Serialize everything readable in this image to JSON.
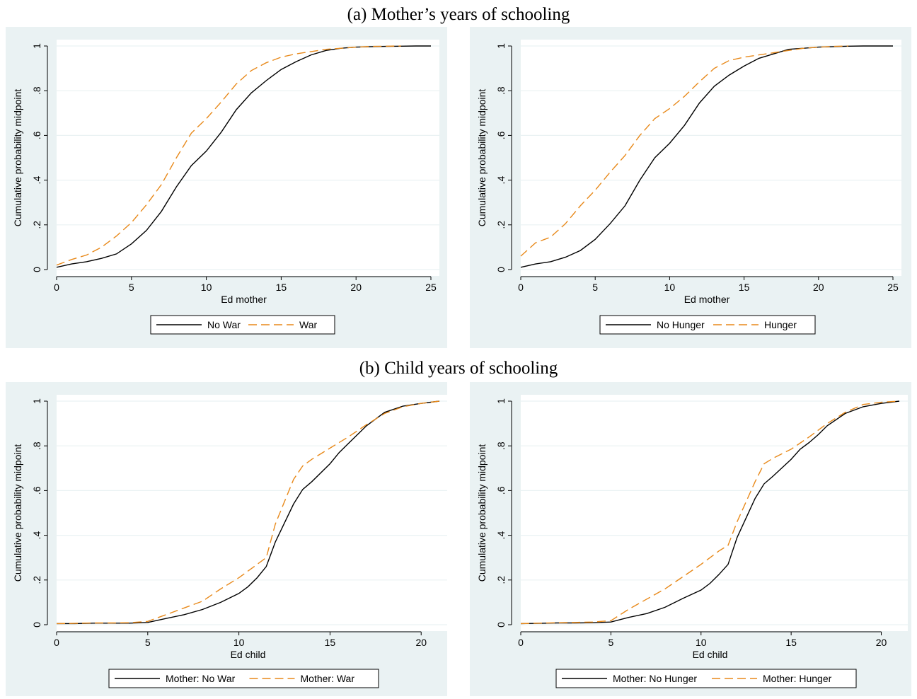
{
  "sections": [
    {
      "title": "(a) Mother’s years of schooling"
    },
    {
      "title": "(b) Child years of schooling"
    }
  ],
  "colors": {
    "series1": "#000000",
    "series2": "#e8891a",
    "panel_bg": "#eaf2f3",
    "plot_bg": "#ffffff"
  },
  "chart_data": [
    {
      "type": "line",
      "xlabel": "Ed mother",
      "ylabel": "Cumulative probability midpoint",
      "xlim": [
        0,
        25
      ],
      "ylim": [
        0,
        1
      ],
      "xticks": [
        0,
        5,
        10,
        15,
        20,
        25
      ],
      "yticks": [
        0,
        0.2,
        0.4,
        0.6,
        0.8,
        1
      ],
      "ytick_labels": [
        "0",
        ".2",
        ".4",
        ".6",
        ".8",
        "1"
      ],
      "grid": true,
      "legend_position": "bottom",
      "series": [
        {
          "name": "No War",
          "style": "solid",
          "x": [
            0,
            1,
            2,
            3,
            4,
            5,
            6,
            7,
            8,
            9,
            10,
            11,
            12,
            13,
            14,
            15,
            16,
            17,
            18,
            19,
            20,
            21,
            22,
            23,
            24,
            25
          ],
          "y": [
            0.01,
            0.025,
            0.035,
            0.05,
            0.07,
            0.115,
            0.175,
            0.26,
            0.37,
            0.465,
            0.53,
            0.615,
            0.715,
            0.79,
            0.845,
            0.895,
            0.93,
            0.96,
            0.98,
            0.99,
            0.995,
            0.997,
            0.998,
            0.999,
            1.0,
            1.0
          ]
        },
        {
          "name": "War",
          "style": "dashed",
          "x": [
            0,
            1,
            2,
            3,
            4,
            5,
            6,
            7,
            8,
            9,
            10,
            11,
            12,
            13,
            14,
            15,
            16,
            17,
            18,
            19,
            20,
            21,
            22,
            23
          ],
          "y": [
            0.02,
            0.045,
            0.065,
            0.1,
            0.15,
            0.21,
            0.29,
            0.38,
            0.5,
            0.61,
            0.675,
            0.75,
            0.83,
            0.89,
            0.925,
            0.95,
            0.965,
            0.975,
            0.985,
            0.99,
            0.995,
            0.998,
            0.999,
            1.0
          ]
        }
      ]
    },
    {
      "type": "line",
      "xlabel": "Ed mother",
      "ylabel": "Cumulative probability midpoint",
      "xlim": [
        0,
        25
      ],
      "ylim": [
        0,
        1
      ],
      "xticks": [
        0,
        5,
        10,
        15,
        20,
        25
      ],
      "yticks": [
        0,
        0.2,
        0.4,
        0.6,
        0.8,
        1
      ],
      "ytick_labels": [
        "0",
        ".2",
        ".4",
        ".6",
        ".8",
        "1"
      ],
      "grid": true,
      "legend_position": "bottom",
      "series": [
        {
          "name": "No Hunger",
          "style": "solid",
          "x": [
            0,
            1,
            2,
            3,
            4,
            5,
            6,
            7,
            8,
            9,
            10,
            11,
            12,
            13,
            14,
            15,
            16,
            17,
            18,
            19,
            20,
            21,
            22,
            23,
            24,
            25
          ],
          "y": [
            0.01,
            0.025,
            0.035,
            0.055,
            0.085,
            0.135,
            0.205,
            0.285,
            0.4,
            0.5,
            0.565,
            0.645,
            0.745,
            0.82,
            0.87,
            0.91,
            0.945,
            0.965,
            0.985,
            0.99,
            0.995,
            0.997,
            0.999,
            1.0,
            1.0,
            1.0
          ]
        },
        {
          "name": "Hunger",
          "style": "dashed",
          "x": [
            0,
            1,
            2,
            3,
            4,
            5,
            6,
            7,
            8,
            9,
            10,
            11,
            12,
            13,
            14,
            15,
            16,
            17,
            18,
            19,
            20,
            21,
            22
          ],
          "y": [
            0.06,
            0.12,
            0.145,
            0.205,
            0.285,
            0.355,
            0.435,
            0.51,
            0.6,
            0.675,
            0.72,
            0.775,
            0.84,
            0.9,
            0.935,
            0.95,
            0.96,
            0.97,
            0.98,
            0.99,
            0.995,
            0.998,
            1.0
          ]
        }
      ]
    },
    {
      "type": "line",
      "xlabel": "Ed child",
      "ylabel": "Cumulative probability midpoint",
      "xlim": [
        0,
        21
      ],
      "ylim": [
        0,
        1
      ],
      "xticks": [
        0,
        5,
        10,
        15,
        20
      ],
      "yticks": [
        0,
        0.2,
        0.4,
        0.6,
        0.8,
        1
      ],
      "ytick_labels": [
        "0",
        ".2",
        ".4",
        ".6",
        ".8",
        "1"
      ],
      "grid": true,
      "legend_position": "bottom",
      "series": [
        {
          "name": "Mother: No War",
          "style": "solid",
          "x": [
            0,
            1,
            2,
            3,
            4,
            5,
            6,
            7,
            8,
            9,
            10,
            10.5,
            11,
            11.5,
            12,
            13,
            13.5,
            14,
            15,
            15.5,
            16,
            16.5,
            17,
            18,
            19,
            20,
            21
          ],
          "y": [
            0.005,
            0.005,
            0.007,
            0.007,
            0.007,
            0.01,
            0.028,
            0.045,
            0.068,
            0.1,
            0.14,
            0.17,
            0.21,
            0.26,
            0.37,
            0.54,
            0.605,
            0.64,
            0.72,
            0.77,
            0.81,
            0.85,
            0.89,
            0.95,
            0.978,
            0.99,
            1.0
          ]
        },
        {
          "name": "Mother: War",
          "style": "dashed",
          "x": [
            0,
            1,
            2,
            3,
            4,
            5,
            6,
            7,
            8,
            9,
            10,
            11,
            11.5,
            12,
            13,
            13.5,
            14,
            15,
            16,
            17,
            18,
            19,
            20,
            21
          ],
          "y": [
            0.005,
            0.006,
            0.008,
            0.008,
            0.009,
            0.015,
            0.045,
            0.075,
            0.105,
            0.16,
            0.21,
            0.27,
            0.3,
            0.45,
            0.65,
            0.71,
            0.74,
            0.79,
            0.84,
            0.895,
            0.945,
            0.975,
            0.99,
            1.0
          ]
        }
      ]
    },
    {
      "type": "line",
      "xlabel": "Ed child",
      "ylabel": "Cumulative probability midpoint",
      "xlim": [
        0,
        21
      ],
      "ylim": [
        0,
        1
      ],
      "xticks": [
        0,
        5,
        10,
        15,
        20
      ],
      "yticks": [
        0,
        0.2,
        0.4,
        0.6,
        0.8,
        1
      ],
      "ytick_labels": [
        "0",
        ".2",
        ".4",
        ".6",
        ".8",
        "1"
      ],
      "grid": true,
      "legend_position": "bottom",
      "series": [
        {
          "name": "Mother: No Hunger",
          "style": "solid",
          "x": [
            0,
            1,
            2,
            3,
            4,
            5,
            6,
            7,
            8,
            9,
            10,
            10.5,
            11,
            11.5,
            12,
            13,
            13.5,
            14,
            15,
            15.5,
            16,
            16.5,
            17,
            18,
            19,
            20,
            21
          ],
          "y": [
            0.005,
            0.006,
            0.008,
            0.008,
            0.009,
            0.012,
            0.033,
            0.05,
            0.078,
            0.118,
            0.155,
            0.185,
            0.225,
            0.27,
            0.39,
            0.565,
            0.63,
            0.665,
            0.74,
            0.785,
            0.815,
            0.85,
            0.89,
            0.945,
            0.975,
            0.99,
            1.0
          ]
        },
        {
          "name": "Mother: Hunger",
          "style": "dashed",
          "x": [
            0,
            1,
            2,
            3,
            4,
            5,
            6,
            7,
            8,
            9,
            10,
            11,
            11.5,
            12,
            13,
            13.5,
            14,
            15,
            16,
            17,
            18,
            19,
            20,
            21
          ],
          "y": [
            0.005,
            0.007,
            0.009,
            0.01,
            0.012,
            0.018,
            0.07,
            0.115,
            0.16,
            0.215,
            0.27,
            0.33,
            0.355,
            0.46,
            0.64,
            0.72,
            0.745,
            0.785,
            0.84,
            0.9,
            0.95,
            0.985,
            0.995,
            1.0
          ]
        }
      ]
    }
  ]
}
